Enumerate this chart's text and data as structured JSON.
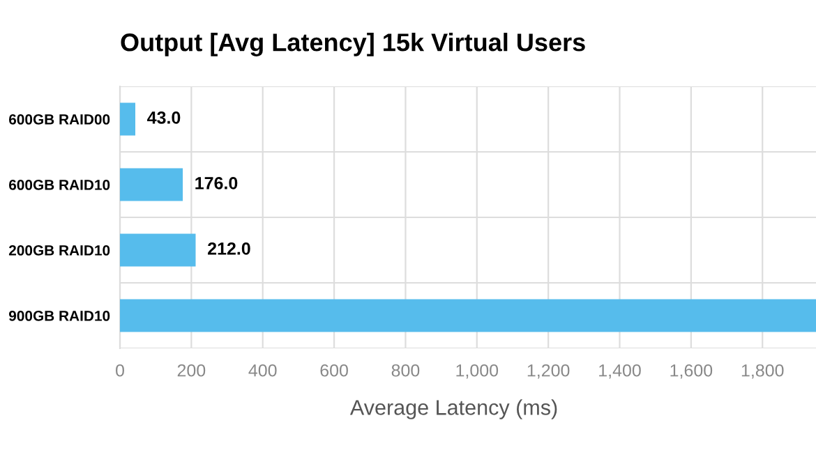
{
  "chart_data": {
    "type": "bar",
    "orientation": "horizontal",
    "title": "Output [Avg Latency] 15k Virtual Users",
    "xlabel": "Average Latency (ms)",
    "categories": [
      "600GB RAID00",
      "600GB RAID10",
      "200GB RAID10",
      "900GB RAID10"
    ],
    "values": [
      43.0,
      176.0,
      212.0,
      1950
    ],
    "value_labels": [
      "43.0",
      "176.0",
      "212.0",
      null
    ],
    "color": "#56bcec",
    "xlim": [
      0,
      1950
    ],
    "xticks": [
      0,
      200,
      400,
      {
        "value": 600,
        "label": "600"
      },
      {
        "value": 800,
        "label": "800"
      },
      {
        "value": 1000,
        "label": "1,000"
      },
      {
        "value": 1200,
        "label": "1,200"
      },
      {
        "value": 1400,
        "label": "1,400"
      },
      {
        "value": 1600,
        "label": "1,600"
      },
      {
        "value": 1800,
        "label": "1,800"
      }
    ],
    "grid": true
  }
}
